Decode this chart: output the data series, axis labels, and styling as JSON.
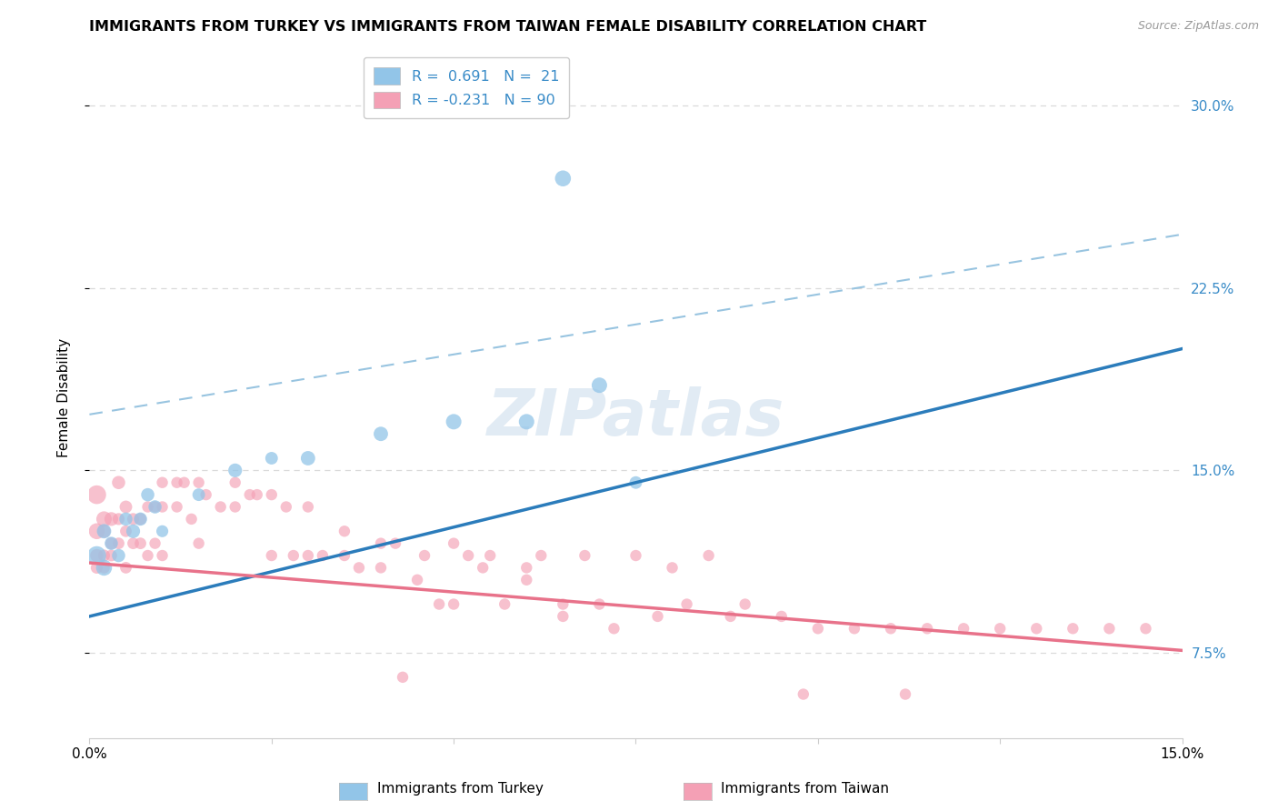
{
  "title": "IMMIGRANTS FROM TURKEY VS IMMIGRANTS FROM TAIWAN FEMALE DISABILITY CORRELATION CHART",
  "source": "Source: ZipAtlas.com",
  "ylabel": "Female Disability",
  "xlim": [
    0.0,
    0.15
  ],
  "ylim": [
    0.04,
    0.32
  ],
  "xticks": [
    0.0,
    0.025,
    0.05,
    0.075,
    0.1,
    0.125,
    0.15
  ],
  "xtick_labels": [
    "0.0%",
    "",
    "",
    "",
    "",
    "",
    "15.0%"
  ],
  "ytick_vals": [
    0.075,
    0.15,
    0.225,
    0.3
  ],
  "ytick_labels_right": [
    "7.5%",
    "15.0%",
    "22.5%",
    "30.0%"
  ],
  "turkey_color": "#92C5E8",
  "taiwan_color": "#F4A0B5",
  "turkey_line_color": "#2B7CBB",
  "taiwan_line_color": "#E8728A",
  "dash_color": "#98C4E0",
  "turkey_line_x0": 0.0,
  "turkey_line_y0": 0.09,
  "turkey_line_x1": 0.15,
  "turkey_line_y1": 0.2,
  "taiwan_line_x0": 0.0,
  "taiwan_line_y0": 0.112,
  "taiwan_line_x1": 0.15,
  "taiwan_line_y1": 0.076,
  "dash_line_x0": 0.0,
  "dash_line_y0": 0.173,
  "dash_line_x1": 0.15,
  "dash_line_y1": 0.247,
  "turkey_x": [
    0.001,
    0.002,
    0.002,
    0.003,
    0.004,
    0.005,
    0.006,
    0.007,
    0.008,
    0.009,
    0.01,
    0.015,
    0.02,
    0.025,
    0.03,
    0.04,
    0.05,
    0.06,
    0.065,
    0.07,
    0.075
  ],
  "turkey_y": [
    0.115,
    0.11,
    0.125,
    0.12,
    0.115,
    0.13,
    0.125,
    0.13,
    0.14,
    0.135,
    0.125,
    0.14,
    0.15,
    0.155,
    0.155,
    0.165,
    0.17,
    0.17,
    0.27,
    0.185,
    0.145
  ],
  "turkey_s": [
    220,
    160,
    130,
    110,
    110,
    110,
    120,
    110,
    110,
    110,
    90,
    100,
    120,
    100,
    130,
    130,
    150,
    150,
    160,
    150,
    100
  ],
  "taiwan_x": [
    0.001,
    0.001,
    0.001,
    0.001,
    0.002,
    0.002,
    0.002,
    0.002,
    0.003,
    0.003,
    0.003,
    0.004,
    0.004,
    0.004,
    0.005,
    0.005,
    0.005,
    0.006,
    0.006,
    0.007,
    0.007,
    0.008,
    0.008,
    0.009,
    0.009,
    0.01,
    0.01,
    0.01,
    0.012,
    0.012,
    0.013,
    0.014,
    0.015,
    0.015,
    0.016,
    0.018,
    0.02,
    0.02,
    0.022,
    0.023,
    0.025,
    0.025,
    0.027,
    0.028,
    0.03,
    0.03,
    0.032,
    0.035,
    0.035,
    0.037,
    0.04,
    0.04,
    0.042,
    0.043,
    0.045,
    0.046,
    0.048,
    0.05,
    0.05,
    0.052,
    0.054,
    0.055,
    0.057,
    0.06,
    0.06,
    0.062,
    0.065,
    0.065,
    0.068,
    0.07,
    0.072,
    0.075,
    0.078,
    0.08,
    0.082,
    0.085,
    0.088,
    0.09,
    0.095,
    0.1,
    0.105,
    0.11,
    0.115,
    0.12,
    0.125,
    0.13,
    0.135,
    0.14,
    0.145,
    0.098,
    0.112
  ],
  "taiwan_y": [
    0.14,
    0.125,
    0.115,
    0.11,
    0.13,
    0.125,
    0.115,
    0.11,
    0.13,
    0.12,
    0.115,
    0.145,
    0.13,
    0.12,
    0.135,
    0.125,
    0.11,
    0.13,
    0.12,
    0.13,
    0.12,
    0.135,
    0.115,
    0.135,
    0.12,
    0.145,
    0.135,
    0.115,
    0.145,
    0.135,
    0.145,
    0.13,
    0.145,
    0.12,
    0.14,
    0.135,
    0.145,
    0.135,
    0.14,
    0.14,
    0.14,
    0.115,
    0.135,
    0.115,
    0.135,
    0.115,
    0.115,
    0.125,
    0.115,
    0.11,
    0.12,
    0.11,
    0.12,
    0.065,
    0.105,
    0.115,
    0.095,
    0.12,
    0.095,
    0.115,
    0.11,
    0.115,
    0.095,
    0.11,
    0.105,
    0.115,
    0.09,
    0.095,
    0.115,
    0.095,
    0.085,
    0.115,
    0.09,
    0.11,
    0.095,
    0.115,
    0.09,
    0.095,
    0.09,
    0.085,
    0.085,
    0.085,
    0.085,
    0.085,
    0.085,
    0.085,
    0.085,
    0.085,
    0.085,
    0.058,
    0.058
  ],
  "taiwan_s": [
    220,
    160,
    110,
    90,
    150,
    110,
    90,
    85,
    120,
    90,
    85,
    110,
    90,
    85,
    100,
    85,
    85,
    90,
    85,
    90,
    85,
    80,
    80,
    80,
    80,
    80,
    80,
    80,
    80,
    80,
    80,
    80,
    80,
    80,
    80,
    80,
    80,
    80,
    80,
    80,
    80,
    80,
    80,
    80,
    80,
    80,
    80,
    80,
    80,
    80,
    80,
    80,
    80,
    80,
    80,
    80,
    80,
    80,
    80,
    80,
    80,
    80,
    80,
    80,
    80,
    80,
    80,
    80,
    80,
    80,
    80,
    80,
    80,
    80,
    80,
    80,
    80,
    80,
    80,
    80,
    80,
    80,
    80,
    80,
    80,
    80,
    80,
    80,
    80,
    80,
    80
  ],
  "watermark": "ZIPatlas",
  "grid_color": "#DADADA",
  "background_color": "#FFFFFF"
}
